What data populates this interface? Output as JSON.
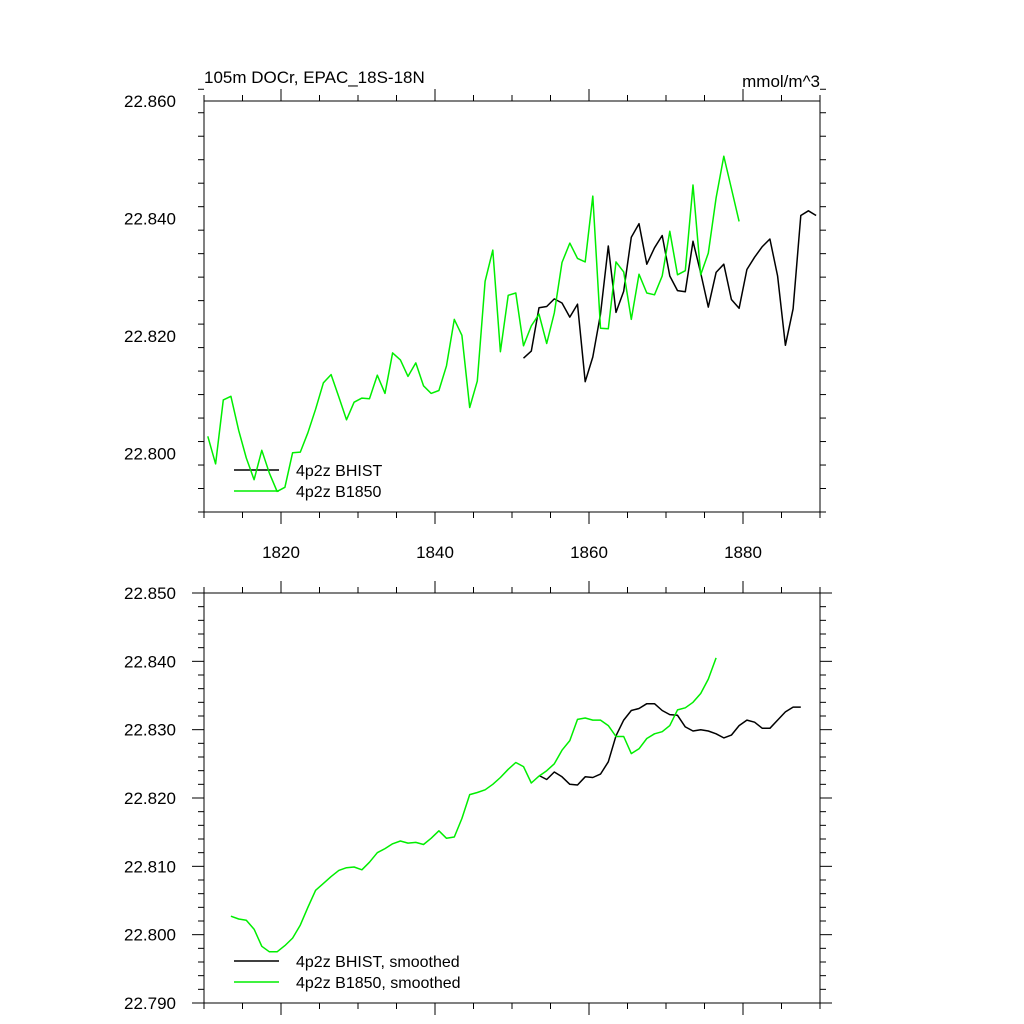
{
  "colors": {
    "bhist": "#000000",
    "b1850": "#00ee00",
    "axis": "#000000"
  },
  "chart_data": [
    {
      "type": "line",
      "title": "105m DOCr, EPAC_18S-18N",
      "units": "mmol/m^3",
      "xlim": [
        1810,
        1890
      ],
      "ylim": [
        22.79,
        22.86
      ],
      "xticks": [
        1820,
        1840,
        1860,
        1880
      ],
      "yticks": [
        22.8,
        22.82,
        22.84,
        22.86
      ],
      "ytick_labels": [
        "22.800",
        "22.820",
        "22.840",
        "22.860"
      ],
      "legend_position": "bottom-left",
      "series": [
        {
          "name": "4p2z BHIST",
          "color": "#000000",
          "x": [
            1851.5,
            1852.5,
            1853.5,
            1854.5,
            1855.5,
            1856.5,
            1857.5,
            1858.5,
            1859.5,
            1860.5,
            1861.5,
            1862.5,
            1863.5,
            1864.5,
            1865.5,
            1866.5,
            1867.5,
            1868.5,
            1869.5,
            1870.5,
            1871.5,
            1872.5,
            1873.5,
            1874.5,
            1875.5,
            1876.5,
            1877.5,
            1878.5,
            1879.5,
            1880.5,
            1881.5,
            1882.5,
            1883.5,
            1884.5,
            1885.5,
            1886.5,
            1887.5,
            1888.5,
            1889.5
          ],
          "y": [
            22.8162,
            22.8174,
            22.8248,
            22.825,
            22.8263,
            22.8256,
            22.8232,
            22.8254,
            22.8122,
            22.8164,
            22.8237,
            22.8353,
            22.824,
            22.8276,
            22.8368,
            22.8391,
            22.8322,
            22.835,
            22.8371,
            22.8302,
            22.8277,
            22.8275,
            22.8361,
            22.8307,
            22.8249,
            22.8308,
            22.8322,
            22.8262,
            22.8247,
            22.8313,
            22.8334,
            22.8352,
            22.8365,
            22.8302,
            22.8184,
            22.8246,
            22.8405,
            22.8413,
            22.8405
          ]
        },
        {
          "name": "4p2z B1850",
          "color": "#00ee00",
          "x": [
            1810.5,
            1811.5,
            1812.5,
            1813.5,
            1814.5,
            1815.5,
            1816.5,
            1817.5,
            1818.5,
            1819.5,
            1820.5,
            1821.5,
            1822.5,
            1823.5,
            1824.5,
            1825.5,
            1826.5,
            1827.5,
            1828.5,
            1829.5,
            1830.5,
            1831.5,
            1832.5,
            1833.5,
            1834.5,
            1835.5,
            1836.5,
            1837.5,
            1838.5,
            1839.5,
            1840.5,
            1841.5,
            1842.5,
            1843.5,
            1844.5,
            1845.5,
            1846.5,
            1847.5,
            1848.5,
            1849.5,
            1850.5,
            1851.5,
            1852.5,
            1853.5,
            1854.5,
            1855.5,
            1856.5,
            1857.5,
            1858.5,
            1859.5,
            1860.5,
            1861.5,
            1862.5,
            1863.5,
            1864.5,
            1865.5,
            1866.5,
            1867.5,
            1868.5,
            1869.5,
            1870.5,
            1871.5,
            1872.5,
            1873.5,
            1874.5,
            1875.5,
            1876.5,
            1877.5,
            1878.5,
            1879.5
          ],
          "y": [
            22.8029,
            22.7982,
            22.8091,
            22.8097,
            22.8039,
            22.7992,
            22.7955,
            22.8005,
            22.7966,
            22.7935,
            22.7942,
            22.8001,
            22.8002,
            22.8035,
            22.8075,
            22.812,
            22.8134,
            22.8096,
            22.8057,
            22.8087,
            22.8094,
            22.8093,
            22.8133,
            22.8102,
            22.8171,
            22.8159,
            22.8131,
            22.8154,
            22.8115,
            22.8102,
            22.8107,
            22.8149,
            22.8228,
            22.8201,
            22.8078,
            22.8123,
            22.8293,
            22.8346,
            22.8173,
            22.8269,
            22.8273,
            22.8183,
            22.8217,
            22.8237,
            22.8187,
            22.8239,
            22.8325,
            22.8358,
            22.8332,
            22.8326,
            22.8438,
            22.8213,
            22.8212,
            22.8326,
            22.8309,
            22.8228,
            22.8305,
            22.8273,
            22.827,
            22.8302,
            22.8378,
            22.8304,
            22.8311,
            22.8457,
            22.8304,
            22.8341,
            22.8435,
            22.8506,
            22.8451,
            22.8395
          ]
        }
      ]
    },
    {
      "type": "line",
      "title": "",
      "xlim": [
        1810,
        1890
      ],
      "ylim": [
        22.79,
        22.85
      ],
      "xticks": [
        1820,
        1840,
        1860,
        1880
      ],
      "yticks": [
        22.79,
        22.8,
        22.81,
        22.82,
        22.83,
        22.84,
        22.85
      ],
      "ytick_labels": [
        "22.790",
        "22.800",
        "22.810",
        "22.820",
        "22.830",
        "22.840",
        "22.850"
      ],
      "legend_position": "bottom-left",
      "series": [
        {
          "name": "4p2z BHIST, smoothed",
          "color": "#000000",
          "x": [
            1853.5,
            1854.5,
            1855.5,
            1856.5,
            1857.5,
            1858.5,
            1859.5,
            1860.5,
            1861.5,
            1862.5,
            1863.5,
            1864.5,
            1865.5,
            1866.5,
            1867.5,
            1868.5,
            1869.5,
            1870.5,
            1871.5,
            1872.5,
            1873.5,
            1874.5,
            1875.5,
            1876.5,
            1877.5,
            1878.5,
            1879.5,
            1880.5,
            1881.5,
            1882.5,
            1883.5,
            1884.5,
            1885.5,
            1886.5,
            1887.5
          ],
          "y": [
            22.8233,
            22.8227,
            22.8238,
            22.8231,
            22.822,
            22.8219,
            22.8231,
            22.823,
            22.8235,
            22.8253,
            22.8291,
            22.8314,
            22.8328,
            22.8331,
            22.8338,
            22.8338,
            22.8328,
            22.8322,
            22.8321,
            22.8304,
            22.8298,
            22.83,
            22.8298,
            22.8294,
            22.8288,
            22.8292,
            22.8306,
            22.8314,
            22.8311,
            22.8302,
            22.8302,
            22.8314,
            22.8326,
            22.8333,
            22.8333
          ]
        },
        {
          "name": "4p2z B1850, smoothed",
          "color": "#00ee00",
          "x": [
            1813.5,
            1814.5,
            1815.5,
            1816.5,
            1817.5,
            1818.5,
            1819.5,
            1820.5,
            1821.5,
            1822.5,
            1823.5,
            1824.5,
            1825.5,
            1826.5,
            1827.5,
            1828.5,
            1829.5,
            1830.5,
            1831.5,
            1832.5,
            1833.5,
            1834.5,
            1835.5,
            1836.5,
            1837.5,
            1838.5,
            1839.5,
            1840.5,
            1841.5,
            1842.5,
            1843.5,
            1844.5,
            1845.5,
            1846.5,
            1847.5,
            1848.5,
            1849.5,
            1850.5,
            1851.5,
            1852.5,
            1853.5,
            1854.5,
            1855.5,
            1856.5,
            1857.5,
            1858.5,
            1859.5,
            1860.5,
            1861.5,
            1862.5,
            1863.5,
            1864.5,
            1865.5,
            1866.5,
            1867.5,
            1868.5,
            1869.5,
            1870.5,
            1871.5,
            1872.5,
            1873.5,
            1874.5,
            1875.5,
            1876.5
          ],
          "y": [
            22.8027,
            22.8023,
            22.8021,
            22.8008,
            22.7983,
            22.7975,
            22.7975,
            22.7984,
            22.7995,
            22.8014,
            22.804,
            22.8065,
            22.8075,
            22.8085,
            22.8094,
            22.8098,
            22.8099,
            22.8095,
            22.8106,
            22.812,
            22.8126,
            22.8133,
            22.8137,
            22.8134,
            22.8135,
            22.8132,
            22.8141,
            22.8152,
            22.8141,
            22.8143,
            22.817,
            22.8205,
            22.8208,
            22.8212,
            22.822,
            22.823,
            22.8242,
            22.8252,
            22.8246,
            22.8222,
            22.8232,
            22.824,
            22.825,
            22.827,
            22.8284,
            22.8315,
            22.8317,
            22.8314,
            22.8314,
            22.8306,
            22.829,
            22.829,
            22.8265,
            22.8272,
            22.8287,
            22.8294,
            22.8297,
            22.8306,
            22.8329,
            22.8332,
            22.834,
            22.8353,
            22.8374,
            22.8405
          ]
        }
      ]
    }
  ]
}
